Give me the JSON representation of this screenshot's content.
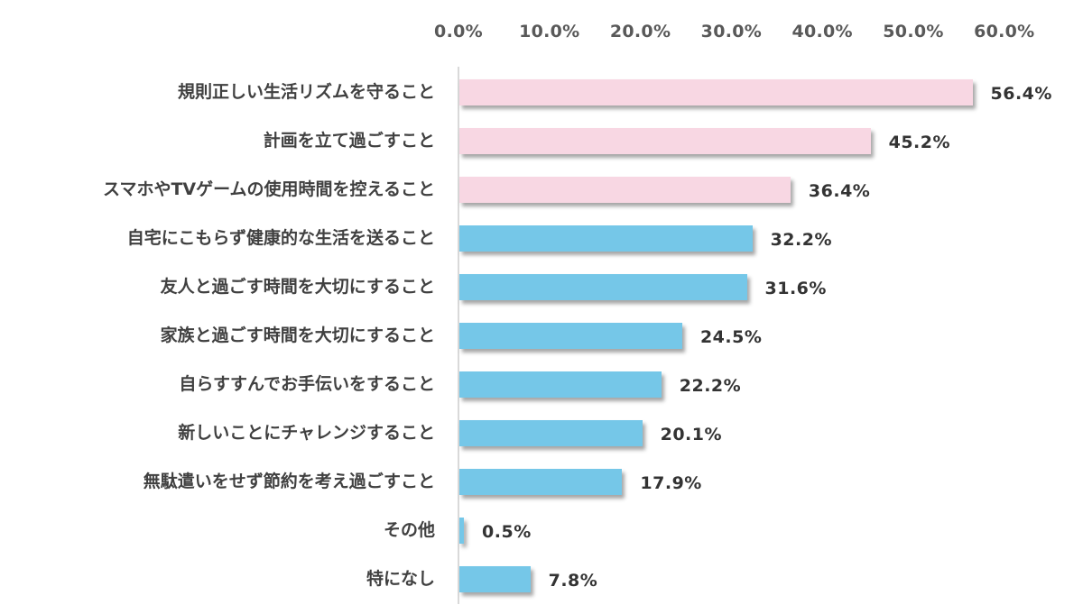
{
  "chart_data": {
    "type": "bar",
    "orientation": "horizontal",
    "title": "",
    "xlabel": "",
    "ylabel": "",
    "xlim": [
      0,
      60
    ],
    "x_ticks": [
      "0.0%",
      "10.0%",
      "20.0%",
      "30.0%",
      "40.0%",
      "50.0%",
      "60.0%"
    ],
    "x_axis_position": "top",
    "grid": false,
    "legend": null,
    "categories": [
      "規則正しい生活リズムを守ること",
      "計画を立て過ごすこと",
      "スマホやTVゲームの使用時間を控えること",
      "自宅にこもらず健康的な生活を送ること",
      "友人と過ごす時間を大切にすること",
      "家族と過ごす時間を大切にすること",
      "自らすすんでお手伝いをすること",
      "新しいことにチャレンジすること",
      "無駄遣いをせず節約を考え過ごすこと",
      "その他",
      "特になし"
    ],
    "values": [
      56.4,
      45.2,
      36.4,
      32.2,
      31.6,
      24.5,
      22.2,
      20.1,
      17.9,
      0.5,
      7.8
    ],
    "value_labels": [
      "56.4%",
      "45.2%",
      "36.4%",
      "32.2%",
      "31.6%",
      "24.5%",
      "22.2%",
      "20.1%",
      "17.9%",
      "0.5%",
      "7.8%"
    ],
    "bar_colors": [
      "#f8d7e3",
      "#f8d7e3",
      "#f8d7e3",
      "#75c7e8",
      "#75c7e8",
      "#75c7e8",
      "#75c7e8",
      "#75c7e8",
      "#75c7e8",
      "#75c7e8",
      "#75c7e8"
    ],
    "highlight_color": "#f8d7e3",
    "base_color": "#75c7e8"
  }
}
